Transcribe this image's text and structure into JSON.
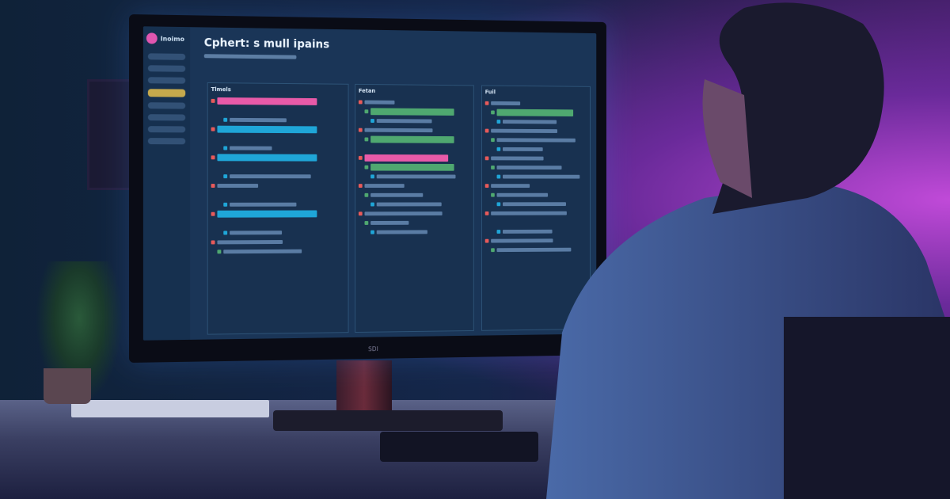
{
  "app": {
    "brand": "Inoimo",
    "title": "Cphert: s mull ipains",
    "bezel_logo": "SDI"
  },
  "colors": {
    "accent_pink": "#e85aa8",
    "accent_blue": "#1fa6d8",
    "accent_green": "#4fa870",
    "accent_yellow": "#f1c84b",
    "screen_bg": "#1a3557"
  },
  "columns": [
    {
      "header": "Tlmels",
      "rows": [
        "pink",
        "none",
        "bar",
        "blue",
        "none",
        "bar",
        "blue",
        "none",
        "bar",
        "bar",
        "none",
        "bar",
        "blue",
        "none",
        "bar",
        "bar",
        "bar"
      ]
    },
    {
      "header": "Fetan",
      "rows": [
        "bar",
        "green",
        "bar",
        "bar",
        "green",
        "none",
        "pink",
        "green",
        "bar",
        "bar",
        "bar",
        "bar",
        "bar",
        "bar",
        "bar"
      ]
    },
    {
      "header": "Fuil",
      "rows": [
        "bar",
        "green",
        "bar",
        "bar",
        "bar",
        "bar",
        "bar",
        "bar",
        "bar",
        "bar",
        "bar",
        "bar",
        "bar",
        "none",
        "bar",
        "bar",
        "bar"
      ]
    }
  ]
}
